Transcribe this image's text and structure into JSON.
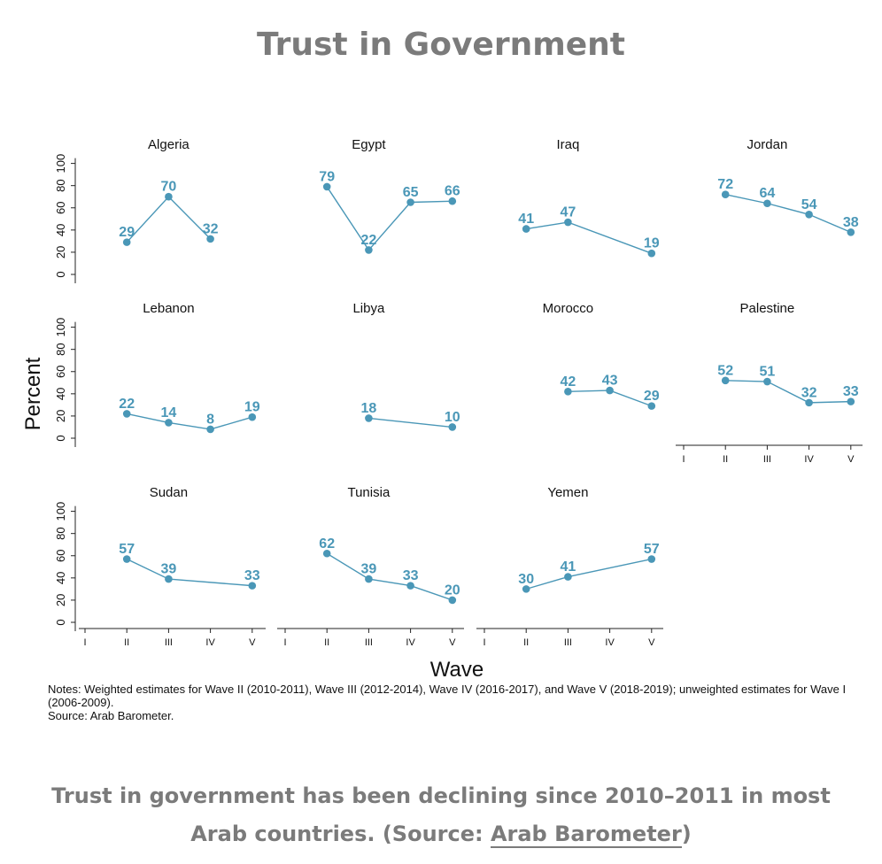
{
  "title": "Trust in Government",
  "chart_data": {
    "type": "line",
    "ylabel": "Percent",
    "xlabel": "Wave",
    "ylim": [
      0,
      100
    ],
    "yticks": [
      "0",
      "20",
      "40",
      "60",
      "80",
      "100"
    ],
    "x_categories": [
      "I",
      "II",
      "III",
      "IV",
      "V"
    ],
    "color": "#4a97b7",
    "panels": [
      {
        "name": "Algeria",
        "points": [
          {
            "x": "II",
            "y": 29
          },
          {
            "x": "III",
            "y": 70
          },
          {
            "x": "IV",
            "y": 32
          }
        ]
      },
      {
        "name": "Egypt",
        "points": [
          {
            "x": "II",
            "y": 79
          },
          {
            "x": "III",
            "y": 22
          },
          {
            "x": "IV",
            "y": 65
          },
          {
            "x": "V",
            "y": 66
          }
        ]
      },
      {
        "name": "Iraq",
        "points": [
          {
            "x": "II",
            "y": 41
          },
          {
            "x": "III",
            "y": 47
          },
          {
            "x": "V",
            "y": 19
          }
        ]
      },
      {
        "name": "Jordan",
        "points": [
          {
            "x": "II",
            "y": 72
          },
          {
            "x": "III",
            "y": 64
          },
          {
            "x": "IV",
            "y": 54
          },
          {
            "x": "V",
            "y": 38
          }
        ]
      },
      {
        "name": "Lebanon",
        "points": [
          {
            "x": "II",
            "y": 22
          },
          {
            "x": "III",
            "y": 14
          },
          {
            "x": "IV",
            "y": 8
          },
          {
            "x": "V",
            "y": 19
          }
        ]
      },
      {
        "name": "Libya",
        "points": [
          {
            "x": "III",
            "y": 18
          },
          {
            "x": "V",
            "y": 10
          }
        ]
      },
      {
        "name": "Morocco",
        "points": [
          {
            "x": "III",
            "y": 42
          },
          {
            "x": "IV",
            "y": 43
          },
          {
            "x": "V",
            "y": 29
          }
        ]
      },
      {
        "name": "Palestine",
        "points": [
          {
            "x": "II",
            "y": 52
          },
          {
            "x": "III",
            "y": 51
          },
          {
            "x": "IV",
            "y": 32
          },
          {
            "x": "V",
            "y": 33
          }
        ]
      },
      {
        "name": "Sudan",
        "points": [
          {
            "x": "II",
            "y": 57
          },
          {
            "x": "III",
            "y": 39
          },
          {
            "x": "V",
            "y": 33
          }
        ]
      },
      {
        "name": "Tunisia",
        "points": [
          {
            "x": "II",
            "y": 62
          },
          {
            "x": "III",
            "y": 39
          },
          {
            "x": "IV",
            "y": 33
          },
          {
            "x": "V",
            "y": 20
          }
        ]
      },
      {
        "name": "Yemen",
        "points": [
          {
            "x": "II",
            "y": 30
          },
          {
            "x": "III",
            "y": 41
          },
          {
            "x": "V",
            "y": 57
          }
        ]
      }
    ]
  },
  "notes": {
    "line1": "Notes: Weighted estimates for Wave II (2010-2011), Wave III (2012-2014), Wave IV (2016-2017), and Wave V (2018-2019); unweighted estimates for Wave I (2006-2009).",
    "line2": "Source: Arab Barometer."
  },
  "caption": {
    "text": "Trust in government has been declining since 2010–2011 in most Arab countries. (Source: ",
    "link": "Arab Barometer",
    "end": ")"
  }
}
